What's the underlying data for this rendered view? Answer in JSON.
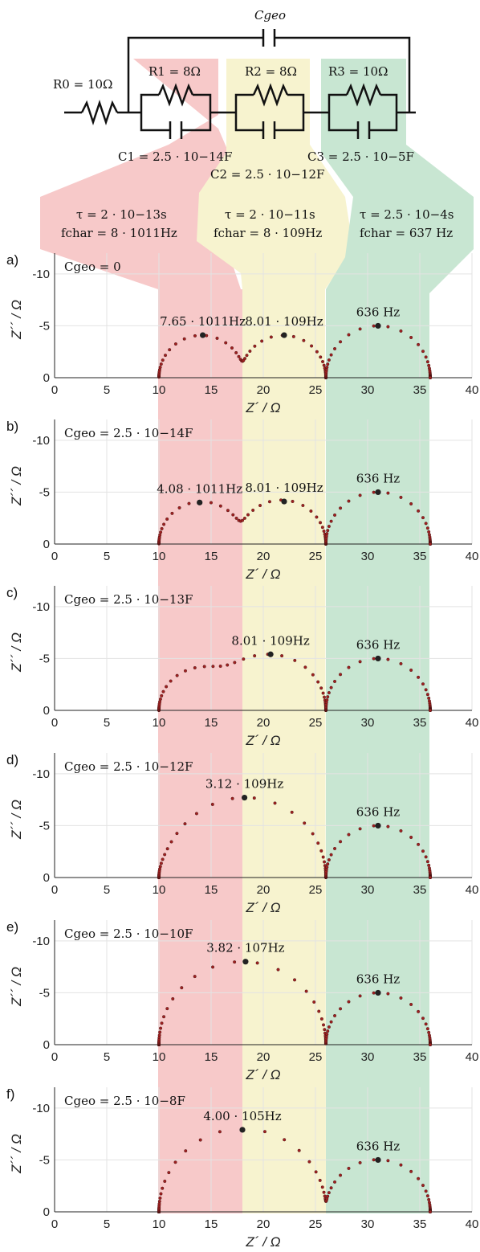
{
  "circuit": {
    "cgeo_label": "Cgeo",
    "r0_label": "R0 = 10Ω",
    "elements": [
      {
        "r_label": "R1 = 8Ω",
        "c_label": "C1 = 2.5 · 10−14F",
        "tau": "τ = 2 · 10−13s",
        "fchar": "fchar = 8 · 1011Hz"
      },
      {
        "r_label": "R2 = 8Ω",
        "c_label": "C2 = 2.5 · 10−12F",
        "tau": "τ = 2 · 10−11s",
        "fchar": "fchar = 8 · 109Hz"
      },
      {
        "r_label": "R3 = 10Ω",
        "c_label": "C3 = 2.5 · 10−5F",
        "tau": "τ = 2.5 · 10−4s",
        "fchar": "fchar = 637 Hz"
      }
    ],
    "colors": {
      "red": "#f7c9c9",
      "yellow": "#f7f3cf",
      "green": "#c8e6d2"
    }
  },
  "chart_data": [
    {
      "type": "scatter",
      "panel": "a)",
      "cgeo": "Cgeo = 0",
      "cgeo_value_F": 0,
      "xlabel": "Z´ / Ω",
      "ylabel": "Z´´ / Ω",
      "xlim": [
        0,
        40
      ],
      "ylim": [
        0,
        -12
      ],
      "xticks": [
        "0",
        "5",
        "10",
        "15",
        "20",
        "25",
        "30",
        "35",
        "40"
      ],
      "yticks": [
        "0",
        "-5",
        "-10"
      ],
      "arcs": [
        {
          "x": [
            10,
            18,
            26,
            36
          ],
          "depth": [
            4.1,
            4.1,
            5.0
          ]
        }
      ],
      "peaks": [
        {
          "x": 14.2,
          "y": -4.1,
          "label": "7.65 · 1011Hz"
        },
        {
          "x": 22.0,
          "y": -4.1,
          "label": "8.01 · 109Hz"
        },
        {
          "x": 31.0,
          "y": -5.0,
          "label": "636 Hz"
        }
      ]
    },
    {
      "type": "scatter",
      "panel": "b)",
      "cgeo": "Cgeo = 2.5 · 10−14F",
      "cgeo_value_F": 2.5e-14,
      "xlabel": "Z´ / Ω",
      "ylabel": "Z´´ / Ω",
      "xlim": [
        0,
        40
      ],
      "ylim": [
        0,
        -12
      ],
      "xticks": [
        "0",
        "5",
        "10",
        "15",
        "20",
        "25",
        "30",
        "35",
        "40"
      ],
      "yticks": [
        "0",
        "-5",
        "-10"
      ],
      "peaks": [
        {
          "x": 13.9,
          "y": -4.0,
          "label": "4.08 · 1011Hz"
        },
        {
          "x": 22.0,
          "y": -4.1,
          "label": "8.01 · 109Hz"
        },
        {
          "x": 31.0,
          "y": -5.0,
          "label": "636 Hz"
        }
      ]
    },
    {
      "type": "scatter",
      "panel": "c)",
      "cgeo": "Cgeo = 2.5 · 10−13F",
      "cgeo_value_F": 2.5e-13,
      "xlabel": "Z´ / Ω",
      "ylabel": "Z´´ / Ω",
      "xlim": [
        0,
        40
      ],
      "ylim": [
        0,
        -12
      ],
      "xticks": [
        "0",
        "5",
        "10",
        "15",
        "20",
        "25",
        "30",
        "35",
        "40"
      ],
      "yticks": [
        "0",
        "-5",
        "-10"
      ],
      "peaks": [
        {
          "x": 20.7,
          "y": -5.4,
          "label": "8.01 · 109Hz"
        },
        {
          "x": 31.0,
          "y": -5.0,
          "label": "636 Hz"
        }
      ]
    },
    {
      "type": "scatter",
      "panel": "d)",
      "cgeo": "Cgeo = 2.5 · 10−12F",
      "cgeo_value_F": 2.5e-12,
      "xlabel": "Z´ / Ω",
      "ylabel": "Z´´ / Ω",
      "xlim": [
        0,
        40
      ],
      "ylim": [
        0,
        -12
      ],
      "xticks": [
        "0",
        "5",
        "10",
        "15",
        "20",
        "25",
        "30",
        "35",
        "40"
      ],
      "yticks": [
        "0",
        "-5",
        "-10"
      ],
      "peaks": [
        {
          "x": 18.2,
          "y": -7.7,
          "label": "3.12 · 109Hz"
        },
        {
          "x": 31.0,
          "y": -5.0,
          "label": "636 Hz"
        }
      ]
    },
    {
      "type": "scatter",
      "panel": "e)",
      "cgeo": "Cgeo = 2.5 · 10−10F",
      "cgeo_value_F": 2.5e-10,
      "xlabel": "Z´ / Ω",
      "ylabel": "Z´´ / Ω",
      "xlim": [
        0,
        40
      ],
      "ylim": [
        0,
        -12
      ],
      "xticks": [
        "0",
        "5",
        "10",
        "15",
        "20",
        "25",
        "30",
        "35",
        "40"
      ],
      "yticks": [
        "0",
        "-5",
        "-10"
      ],
      "peaks": [
        {
          "x": 18.3,
          "y": -8.0,
          "label": "3.82 · 107Hz"
        },
        {
          "x": 31.0,
          "y": -5.0,
          "label": "636 Hz"
        }
      ]
    },
    {
      "type": "scatter",
      "panel": "f)",
      "cgeo": "Cgeo = 2.5 · 10−8F",
      "cgeo_value_F": 2.5e-08,
      "xlabel": "Z´ / Ω",
      "ylabel": "Z´´ / Ω",
      "xlim": [
        0,
        40
      ],
      "ylim": [
        0,
        -12
      ],
      "xticks": [
        "0",
        "5",
        "10",
        "15",
        "20",
        "25",
        "30",
        "35",
        "40"
      ],
      "yticks": [
        "0",
        "-5",
        "-10"
      ],
      "peaks": [
        {
          "x": 18.0,
          "y": -7.9,
          "label": "4.00 · 105Hz"
        },
        {
          "x": 31.0,
          "y": -5.0,
          "label": "636 Hz"
        }
      ]
    }
  ]
}
